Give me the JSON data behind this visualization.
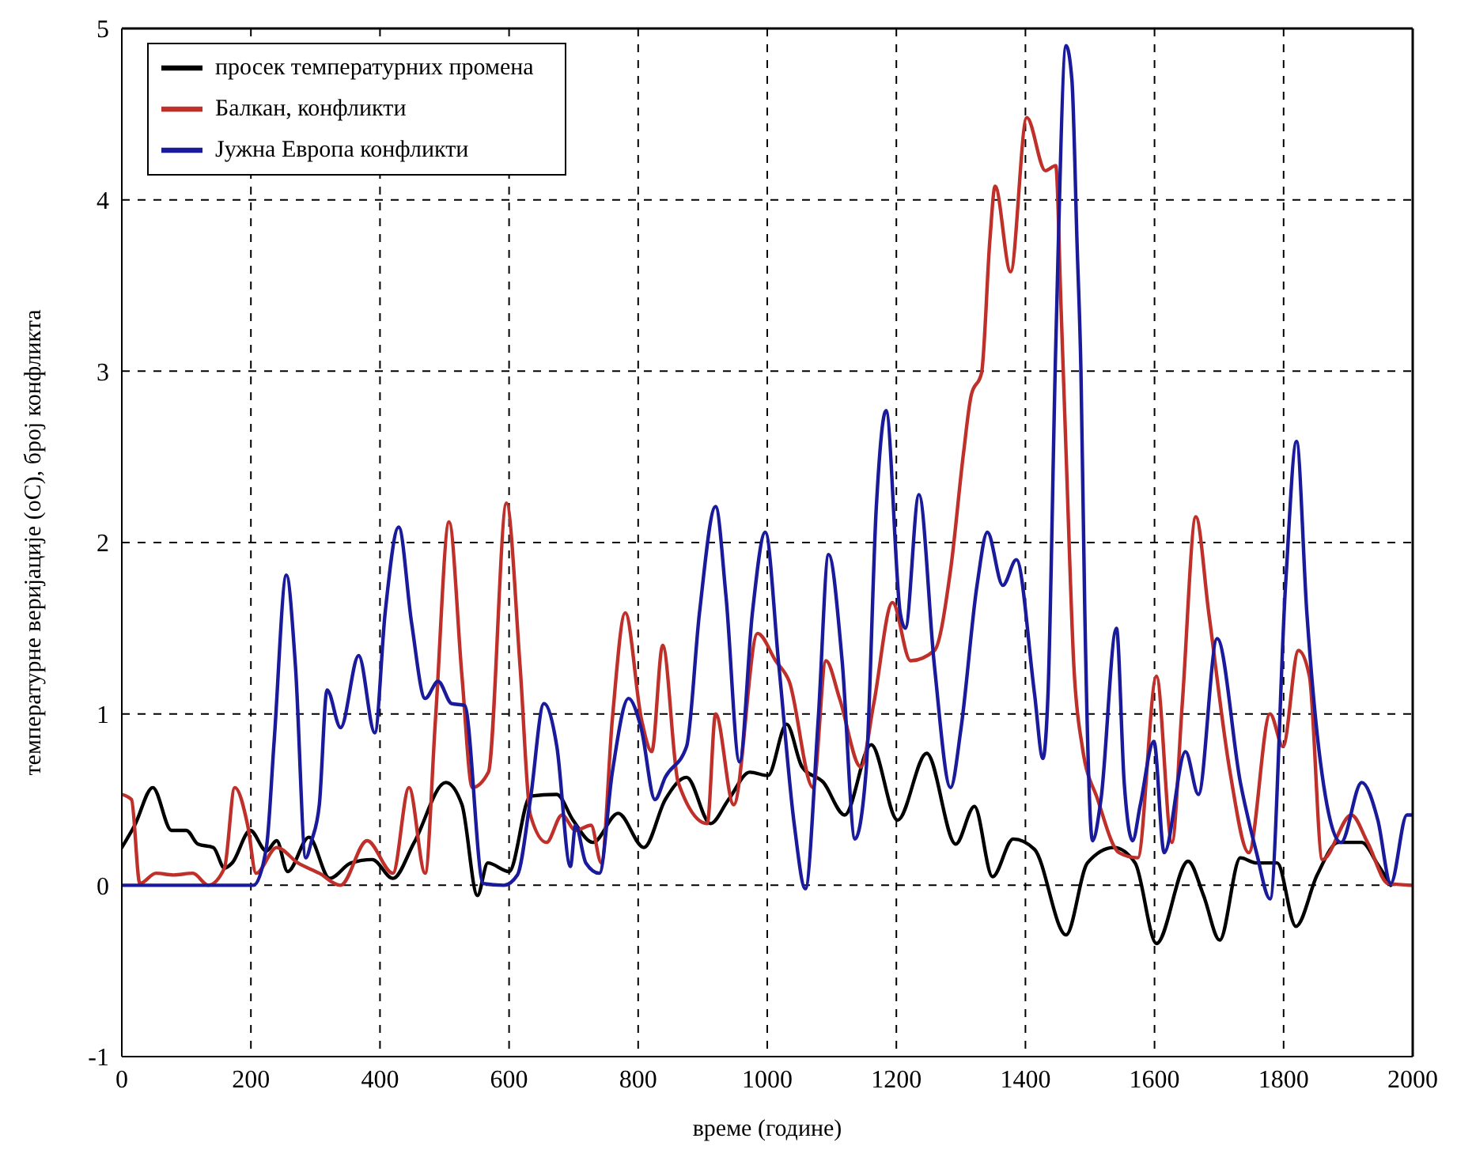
{
  "chart_data": {
    "type": "line",
    "xlabel": "време (године)",
    "ylabel": "температурне веријације (oC), број конфликта",
    "xlim": [
      0,
      2000
    ],
    "xticks": [
      0,
      200,
      400,
      600,
      800,
      1000,
      1200,
      1400,
      1600,
      1800,
      2000
    ],
    "ylim": [
      -1,
      5
    ],
    "yticks": [
      -1,
      0,
      1,
      2,
      3,
      4,
      5
    ],
    "grid": true,
    "legend": "top left",
    "line_style": "solid",
    "series": [
      {
        "name": "просек температурних промена",
        "color": "#000000",
        "x": [
          0,
          20,
          48,
          77,
          100,
          118,
          142,
          159,
          171,
          199,
          224,
          240,
          257,
          290,
          322,
          355,
          388,
          420,
          453,
          502,
          527,
          551,
          567,
          600,
          633,
          674,
          699,
          730,
          769,
          809,
          842,
          875,
          912,
          940,
          973,
          1001,
          1030,
          1054,
          1087,
          1120,
          1161,
          1202,
          1247,
          1292,
          1321,
          1349,
          1381,
          1414,
          1463,
          1496,
          1537,
          1570,
          1603,
          1652,
          1676,
          1701,
          1733,
          1758,
          1790,
          1819,
          1852,
          1885,
          1921,
          1946,
          1966
        ],
        "values": [
          0.22,
          0.35,
          0.57,
          0.32,
          0.32,
          0.24,
          0.22,
          0.1,
          0.13,
          0.32,
          0.2,
          0.26,
          0.08,
          0.28,
          0.04,
          0.13,
          0.15,
          0.04,
          0.25,
          0.6,
          0.47,
          -0.06,
          0.13,
          0.08,
          0.52,
          0.53,
          0.38,
          0.25,
          0.42,
          0.22,
          0.5,
          0.63,
          0.36,
          0.5,
          0.66,
          0.64,
          0.94,
          0.69,
          0.6,
          0.41,
          0.82,
          0.38,
          0.77,
          0.24,
          0.46,
          0.05,
          0.27,
          0.21,
          -0.29,
          0.13,
          0.22,
          0.13,
          -0.34,
          0.14,
          -0.06,
          -0.32,
          0.16,
          0.13,
          0.13,
          -0.24,
          0.06,
          0.25,
          0.25,
          0.12,
          0.0
        ]
      },
      {
        "name": "Балкан, конфликти",
        "color": "#c0302a",
        "x": [
          0,
          15,
          28,
          53,
          80,
          110,
          134,
          159,
          175,
          195,
          208,
          240,
          273,
          306,
          339,
          380,
          420,
          445,
          470,
          486,
          507,
          527,
          543,
          568,
          596,
          617,
          633,
          658,
          682,
          703,
          727,
          743,
          760,
          780,
          805,
          821,
          838,
          862,
          907,
          920,
          948,
          985,
          1013,
          1034,
          1071,
          1091,
          1112,
          1145,
          1165,
          1194,
          1222,
          1259,
          1284,
          1304,
          1316,
          1332,
          1345,
          1353,
          1377,
          1402,
          1431,
          1447,
          1455,
          1463,
          1475,
          1488,
          1512,
          1545,
          1574,
          1603,
          1627,
          1643,
          1664,
          1684,
          1717,
          1746,
          1779,
          1799,
          1823,
          1840,
          1860,
          1905,
          1930,
          1962,
          2000
        ],
        "values": [
          0.53,
          0.5,
          0.01,
          0.07,
          0.06,
          0.07,
          0.0,
          0.1,
          0.57,
          0.35,
          0.07,
          0.22,
          0.13,
          0.07,
          0.0,
          0.26,
          0.07,
          0.57,
          0.07,
          0.97,
          2.12,
          1.22,
          0.57,
          0.66,
          2.23,
          1.28,
          0.41,
          0.25,
          0.41,
          0.32,
          0.35,
          0.13,
          0.97,
          1.59,
          0.97,
          0.78,
          1.4,
          0.6,
          0.36,
          1.0,
          0.47,
          1.47,
          1.31,
          1.19,
          0.57,
          1.31,
          1.09,
          0.69,
          1.06,
          1.65,
          1.31,
          1.37,
          1.84,
          2.52,
          2.86,
          2.99,
          3.77,
          4.08,
          3.58,
          4.48,
          4.17,
          4.2,
          3.39,
          2.52,
          1.28,
          0.81,
          0.5,
          0.19,
          0.16,
          1.22,
          0.25,
          1.06,
          2.15,
          1.59,
          0.66,
          0.19,
          1.0,
          0.81,
          1.37,
          1.22,
          0.15,
          0.41,
          0.25,
          0.01,
          0.0
        ]
      },
      {
        "name": "Јужна Европа конфликти",
        "color": "#1a1a9c",
        "x": [
          0,
          100,
          204,
          224,
          236,
          255,
          269,
          285,
          294,
          306,
          318,
          339,
          367,
          392,
          408,
          429,
          449,
          470,
          490,
          511,
          531,
          560,
          592,
          613,
          633,
          654,
          674,
          695,
          703,
          719,
          740,
          760,
          785,
          805,
          826,
          842,
          875,
          895,
          920,
          936,
          957,
          977,
          997,
          1018,
          1042,
          1059,
          1079,
          1095,
          1116,
          1136,
          1153,
          1169,
          1184,
          1206,
          1214,
          1235,
          1259,
          1284,
          1300,
          1325,
          1341,
          1365,
          1386,
          1414,
          1427,
          1435,
          1447,
          1463,
          1472,
          1480,
          1486,
          1492,
          1504,
          1517,
          1541,
          1553,
          1566,
          1578,
          1599,
          1615,
          1648,
          1668,
          1697,
          1733,
          1758,
          1779,
          1803,
          1820,
          1836,
          1857,
          1889,
          1921,
          1946,
          1966,
          1991,
          2000
        ],
        "values": [
          0,
          0,
          0,
          0.22,
          0.84,
          1.81,
          1.28,
          0.16,
          0.26,
          0.47,
          1.14,
          0.92,
          1.34,
          0.89,
          1.59,
          2.09,
          1.53,
          1.09,
          1.19,
          1.06,
          1.05,
          0.01,
          0.0,
          0.06,
          0.5,
          1.06,
          0.81,
          0.11,
          0.35,
          0.13,
          0.07,
          0.66,
          1.09,
          0.91,
          0.5,
          0.63,
          0.81,
          1.59,
          2.21,
          1.69,
          0.72,
          1.59,
          2.06,
          1.28,
          0.35,
          -0.02,
          0.97,
          1.93,
          1.31,
          0.27,
          0.66,
          2.21,
          2.77,
          1.59,
          1.5,
          2.28,
          1.28,
          0.57,
          0.91,
          1.75,
          2.06,
          1.75,
          1.9,
          1.12,
          0.74,
          1.12,
          3.15,
          4.9,
          4.7,
          3.74,
          3.0,
          1.59,
          0.26,
          0.5,
          1.5,
          0.6,
          0.26,
          0.47,
          0.84,
          0.19,
          0.78,
          0.53,
          1.44,
          0.6,
          0.19,
          -0.08,
          1.75,
          2.59,
          1.59,
          0.72,
          0.25,
          0.6,
          0.38,
          0.01,
          0.41,
          0.41
        ]
      }
    ]
  }
}
